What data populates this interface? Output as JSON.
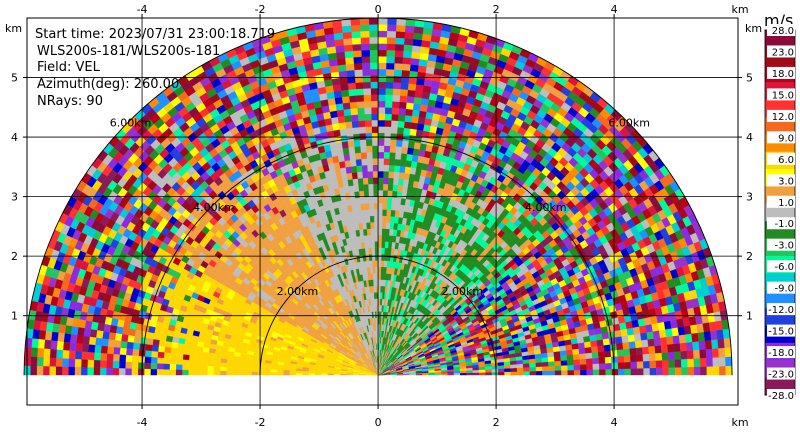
{
  "chart_data": {
    "type": "heatmap",
    "subtype": "radar-ppi-sector",
    "info": {
      "start_time": "Start time: 2023/07/31 23:00:18.719",
      "site": "WLS200s-181/WLS200s-181",
      "field": "Field: VEL",
      "azimuth": "Azimuth(deg): 260.00",
      "nrays": "NRays: 90"
    },
    "field": "VEL",
    "azimuth_deg": 260.0,
    "nrays": 90,
    "x_unit": "km",
    "y_unit": "km",
    "xlim": [
      -5.95,
      6.1
    ],
    "ylim": [
      -0.5,
      6.0
    ],
    "x_ticks": [
      -4,
      -2,
      0,
      2,
      4
    ],
    "y_ticks": [
      1,
      2,
      3,
      4,
      5
    ],
    "range_rings": [
      {
        "radius_km": 2.0,
        "label": "2.00km"
      },
      {
        "radius_km": 4.0,
        "label": "4.00km"
      },
      {
        "radius_km": 6.0,
        "label": "6.00km"
      }
    ],
    "max_range_km": 6.0,
    "grid": true,
    "colorbar": {
      "title": "m/s",
      "placement": "right",
      "labels": [
        "28.0",
        "23.0",
        "18.0",
        "15.0",
        "12.0",
        "9.0",
        "6.0",
        "3.0",
        "1.0",
        "-1.0",
        "-3.0",
        "-6.0",
        "-9.0",
        "-12.0",
        "-15.0",
        "-18.0",
        "-23.0",
        "-28.0"
      ],
      "colors": [
        "#8b0a3b",
        "#a00a14",
        "#b8001a",
        "#dc143c",
        "#ff3232",
        "#f56a1e",
        "#ff8c00",
        "#ffd700",
        "#ffff00",
        "#f0a040",
        "#bdbdbd",
        "#228b22",
        "#22c55e",
        "#00fa9a",
        "#00ced1",
        "#1e90ff",
        "#2040e0",
        "#0000cd",
        "#8a2be2",
        "#9932cc",
        "#8b1a5a"
      ]
    }
  }
}
